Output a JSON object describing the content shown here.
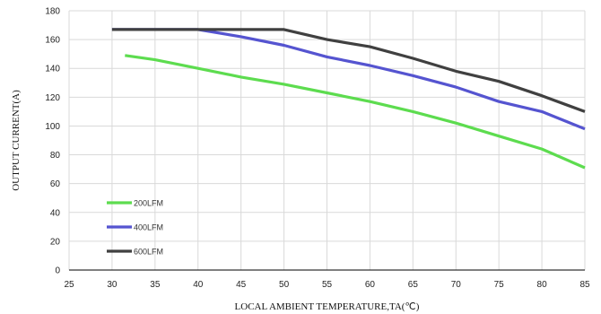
{
  "chart_data": {
    "type": "line",
    "title": "",
    "xlabel": "LOCAL AMBIENT TEMPERATURE,TA(℃)",
    "ylabel": "OUTPUT CURRENT(A)",
    "xlim": [
      25,
      85
    ],
    "ylim": [
      0,
      180
    ],
    "xticks": [
      "25",
      "30",
      "35",
      "40",
      "45",
      "50",
      "55",
      "60",
      "65",
      "70",
      "75",
      "80",
      "85"
    ],
    "yticks": [
      "0",
      "20",
      "40",
      "60",
      "80",
      "100",
      "120",
      "140",
      "160",
      "180"
    ],
    "grid": true,
    "legend_position": "bottom-left",
    "series": [
      {
        "name": "200LFM",
        "color": "#5ddc4f",
        "x": [
          31.5,
          35,
          40,
          45,
          50,
          55,
          60,
          65,
          70,
          75,
          80,
          85
        ],
        "y": [
          149,
          146,
          140,
          134,
          129,
          123,
          117,
          110,
          102,
          93,
          84,
          71
        ]
      },
      {
        "name": "400LFM",
        "color": "#5554d0",
        "x": [
          30,
          40,
          45,
          50,
          55,
          60,
          65,
          70,
          75,
          80,
          85
        ],
        "y": [
          167,
          167,
          162,
          156,
          148,
          142,
          135,
          127,
          117,
          110,
          98
        ]
      },
      {
        "name": "600LFM",
        "color": "#404040",
        "x": [
          30,
          50,
          55,
          60,
          65,
          70,
          75,
          80,
          85
        ],
        "y": [
          167,
          167,
          160,
          155,
          147,
          138,
          131,
          121,
          110
        ]
      }
    ]
  }
}
